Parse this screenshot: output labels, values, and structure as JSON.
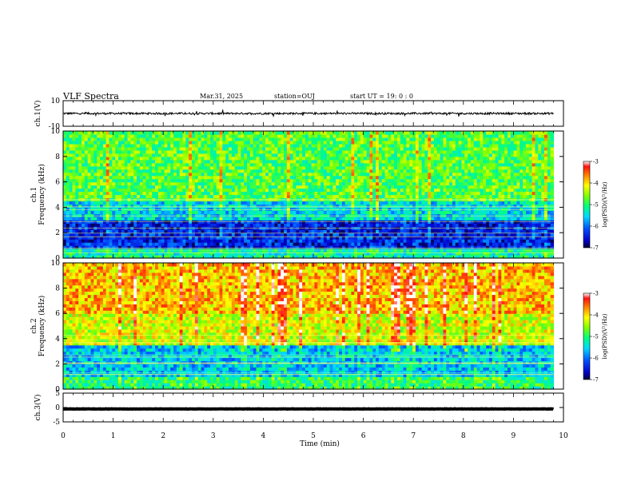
{
  "header": {
    "title": "VLF Spectra",
    "date": "Mar.31, 2025",
    "station": "station=OUJ",
    "start": "start UT =  19: 0  : 0"
  },
  "chart_data": [
    {
      "type": "line",
      "name": "ch1-waveform",
      "ylabel": "ch.1(V)",
      "ylim": [
        -10,
        10
      ],
      "y_ticks": [
        "10",
        "-10"
      ],
      "x_range": [
        0,
        10
      ],
      "data_end": 9.8,
      "baseline": 0,
      "noise_amplitude": 1.5
    },
    {
      "type": "heatmap",
      "name": "ch1-spectrogram",
      "ylabel": "ch.1\nFrequency (kHz)",
      "ylim": [
        0,
        10
      ],
      "y_ticks": [
        "0",
        "2",
        "4",
        "6",
        "8",
        "10"
      ],
      "x_range": [
        0,
        10
      ],
      "data_end": 9.8,
      "colorbar": {
        "label": "log(PSD)(V²/Hz)",
        "range": [
          -7,
          -3
        ],
        "ticks": [
          "-3",
          "-4",
          "-5",
          "-6",
          "-7"
        ]
      },
      "bands": [
        {
          "from": 0,
          "to": 0.8,
          "level": -5.2
        },
        {
          "from": 0.8,
          "to": 3.0,
          "level": -6.4
        },
        {
          "from": 3.0,
          "to": 4.6,
          "level": -5.5
        },
        {
          "from": 4.6,
          "to": 10,
          "level": -4.8
        }
      ]
    },
    {
      "type": "heatmap",
      "name": "ch2-spectrogram",
      "ylabel": "ch.2\nFrequency (kHz)",
      "ylim": [
        0,
        10
      ],
      "y_ticks": [
        "0",
        "2",
        "4",
        "6",
        "8",
        "10"
      ],
      "x_range": [
        0,
        10
      ],
      "data_end": 9.8,
      "colorbar": {
        "label": "log(PSD)(V²/Hz)",
        "range": [
          -7,
          -3
        ],
        "ticks": [
          "-3",
          "-4",
          "-5",
          "-6",
          "-7"
        ]
      },
      "bands": [
        {
          "from": 0,
          "to": 1.0,
          "level": -5.0
        },
        {
          "from": 1.0,
          "to": 3.5,
          "level": -5.6
        },
        {
          "from": 3.5,
          "to": 6.0,
          "level": -4.3
        },
        {
          "from": 6.0,
          "to": 10,
          "level": -3.9
        }
      ]
    },
    {
      "type": "line",
      "name": "ch3-waveform",
      "ylabel": "ch.3(V)",
      "ylim": [
        -5,
        5
      ],
      "y_ticks": [
        "5",
        "0",
        "-5"
      ],
      "x_range": [
        0,
        10
      ],
      "data_end": 9.8,
      "baseline": -0.5,
      "noise_amplitude": 0.1
    }
  ],
  "x_axis": {
    "label": "Time (min)",
    "ticks": [
      "0",
      "1",
      "2",
      "3",
      "4",
      "5",
      "6",
      "7",
      "8",
      "9",
      "10"
    ]
  }
}
